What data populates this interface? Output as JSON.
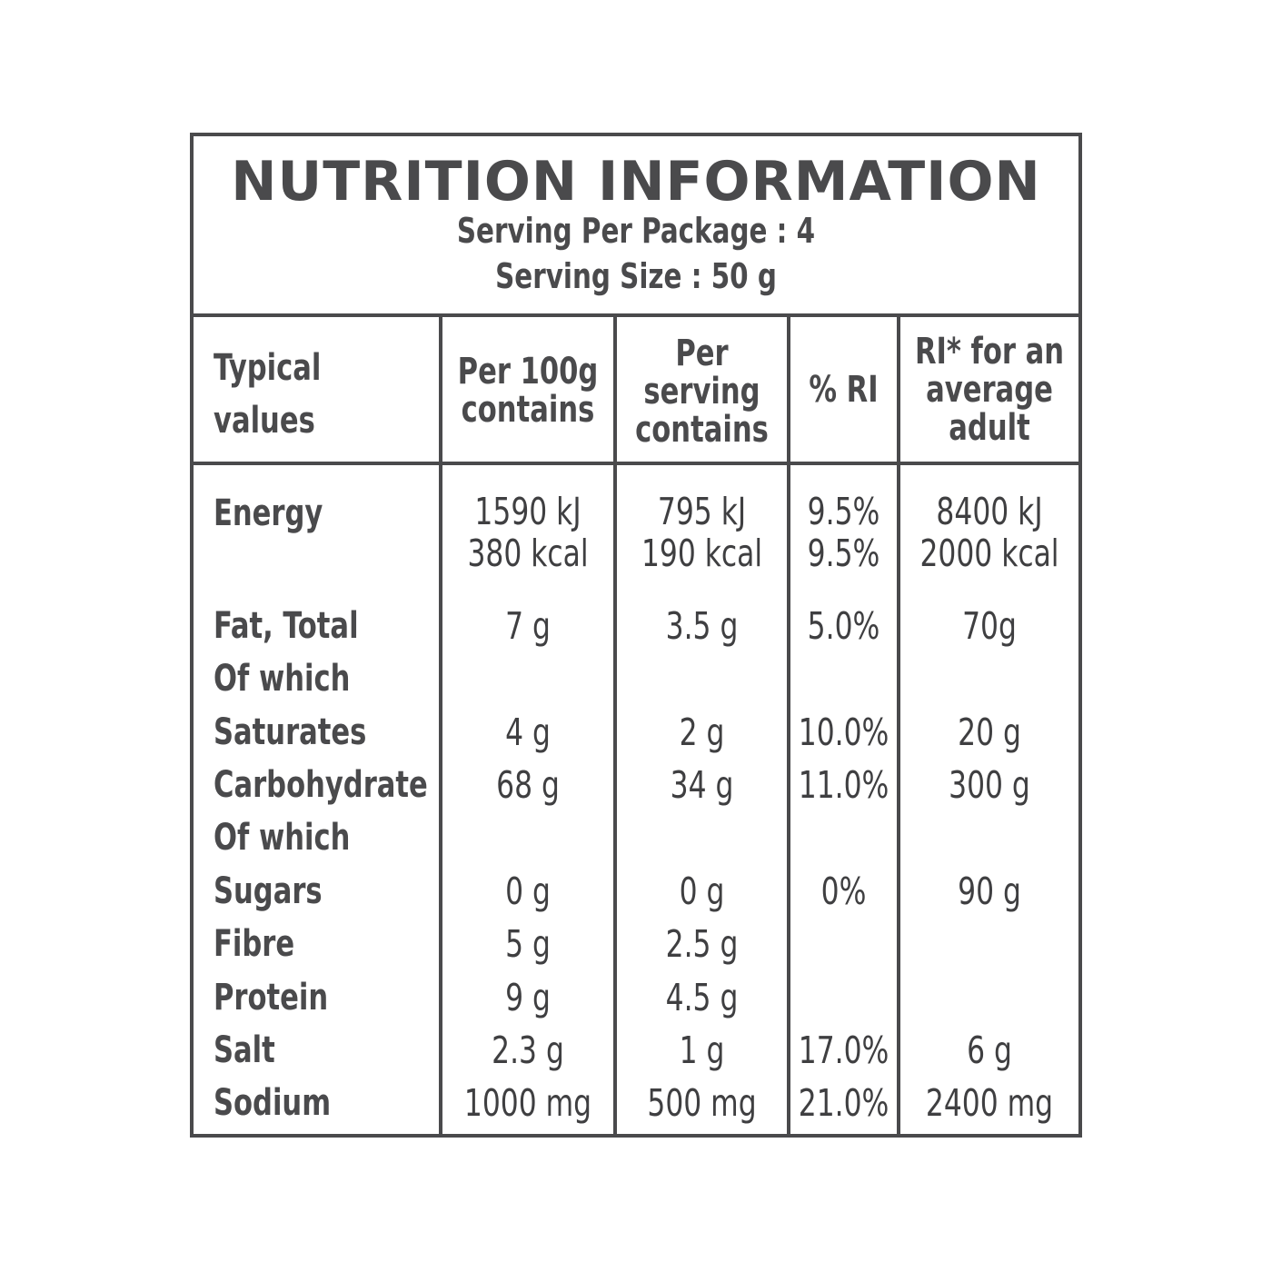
{
  "title": "NUTRITION INFORMATION",
  "serving_per_package": "Serving Per Package : 4",
  "serving_size": "Serving Size : 50 g",
  "columns": {
    "typical": [
      "Typical",
      "values"
    ],
    "per100": [
      "Per 100g",
      "contains"
    ],
    "perserving": [
      "Per",
      "serving",
      "contains"
    ],
    "ri_pct": [
      "% RI"
    ],
    "ri_adult": [
      "RI* for an",
      "average",
      "adult"
    ]
  },
  "rows": {
    "energy": {
      "label": "Energy",
      "per100": [
        "1590 kJ",
        "380 kcal"
      ],
      "perserving": [
        "795 kJ",
        "190 kcal"
      ],
      "ri_pct": [
        "9.5%",
        "9.5%"
      ],
      "ri_adult": [
        "8400 kJ",
        "2000 kcal"
      ]
    },
    "fat": {
      "label": "Fat, Total",
      "per100": "7 g",
      "perserving": "3.5 g",
      "ri_pct": "5.0%",
      "ri_adult": "70g"
    },
    "ofwhich1": {
      "label": "Of which"
    },
    "saturates": {
      "label": "Saturates",
      "per100": "4 g",
      "perserving": "2 g",
      "ri_pct": "10.0%",
      "ri_adult": "20 g"
    },
    "carbohydrate": {
      "label": "Carbohydrate",
      "per100": "68 g",
      "perserving": "34 g",
      "ri_pct": "11.0%",
      "ri_adult": "300 g"
    },
    "ofwhich2": {
      "label": "Of which"
    },
    "sugars": {
      "label": "Sugars",
      "per100": "0 g",
      "perserving": "0 g",
      "ri_pct": "0%",
      "ri_adult": "90 g"
    },
    "fibre": {
      "label": "Fibre",
      "per100": "5 g",
      "perserving": "2.5 g"
    },
    "protein": {
      "label": "Protein",
      "per100": "9 g",
      "perserving": "4.5 g"
    },
    "salt": {
      "label": "Salt",
      "per100": "2.3 g",
      "perserving": "1 g",
      "ri_pct": "17.0%",
      "ri_adult": "6 g"
    },
    "sodium": {
      "label": "Sodium",
      "per100": "1000 mg",
      "perserving": "500 mg",
      "ri_pct": "21.0%",
      "ri_adult": "2400 mg"
    }
  },
  "colors": {
    "ink": "#4a4a4c",
    "background": "#ffffff"
  }
}
